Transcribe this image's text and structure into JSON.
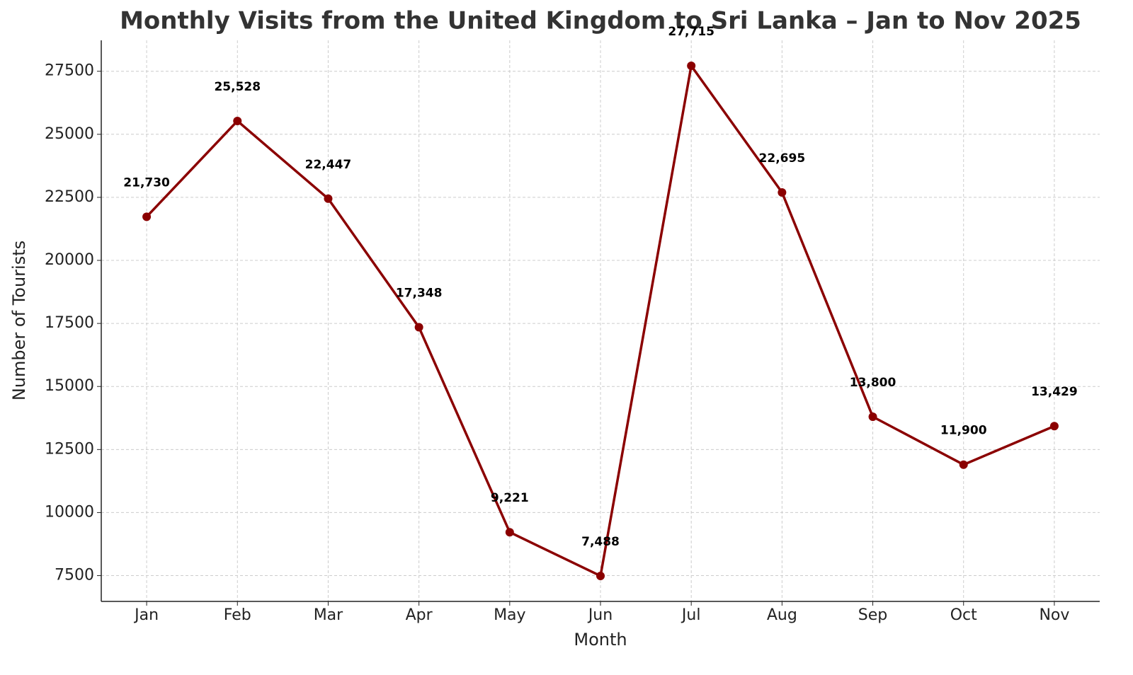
{
  "chart_data": {
    "type": "line",
    "title": "Monthly Visits from the United Kingdom to Sri Lanka – Jan to Nov 2025",
    "x_label": "Month",
    "y_label": "Number of Tourists",
    "categories": [
      "Jan",
      "Feb",
      "Mar",
      "Apr",
      "May",
      "Jun",
      "Jul",
      "Aug",
      "Sep",
      "Oct",
      "Nov"
    ],
    "series": [
      {
        "name": "Visits",
        "color": "#8b0000",
        "values": [
          21730,
          25528,
          22447,
          17348,
          9221,
          7488,
          27715,
          22695,
          13800,
          11900,
          13429
        ],
        "value_labels": [
          "21,730",
          "25,528",
          "22,447",
          "17,348",
          "9,221",
          "7,488",
          "27,715",
          "22,695",
          "13,800",
          "11,900",
          "13,429"
        ]
      }
    ],
    "ylim": [
      6477,
      28726
    ],
    "yticks": [
      7500,
      10000,
      12500,
      15000,
      17500,
      20000,
      22500,
      25000,
      27500
    ],
    "grid": true
  }
}
